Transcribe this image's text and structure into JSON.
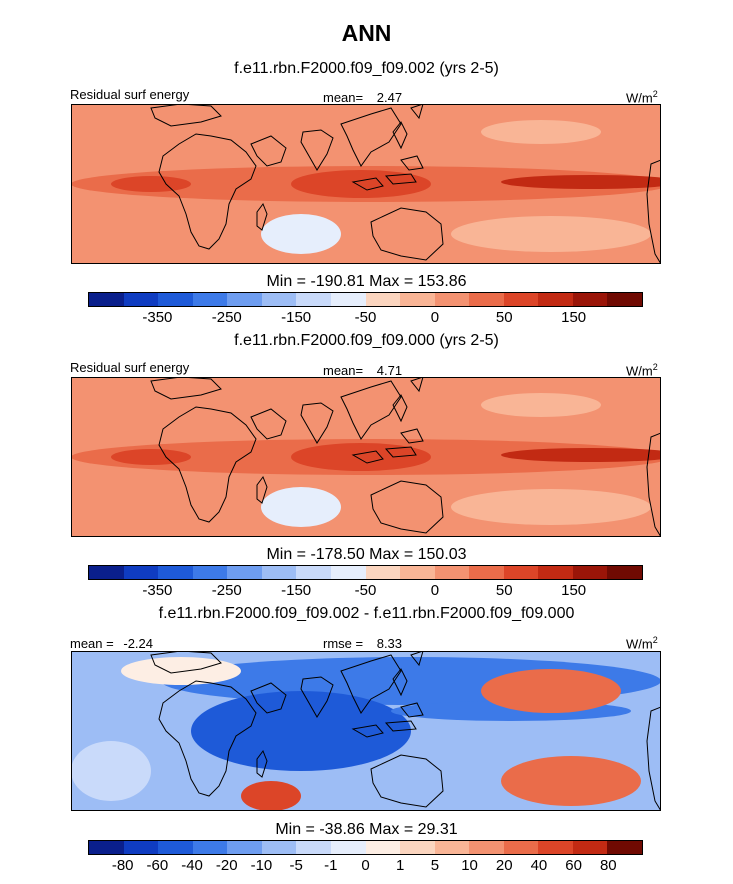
{
  "figure": {
    "title": "ANN",
    "units": "W/m",
    "units_exponent": "2"
  },
  "chart_data": [
    {
      "type": "heatmap",
      "title": "f.e11.rbn.F2000.f09_f09.002 (yrs 2-5)",
      "variable_label": "Residual surf energy",
      "stat_label": "mean=",
      "stat_value": "2.47",
      "min_max_label": "Min = -190.81 Max = 153.86",
      "min": -190.81,
      "max": 153.86,
      "colorbar_ticks": [
        "-350",
        "-250",
        "-150",
        "-50",
        "0",
        "50",
        "150"
      ],
      "colorbar_levels": [
        -400,
        -350,
        -300,
        -250,
        -200,
        -150,
        -100,
        -50,
        -25,
        0,
        25,
        50,
        100,
        150,
        200
      ],
      "colors": [
        "#0a1f8c",
        "#0f3cc1",
        "#1e5ad8",
        "#3d7ae8",
        "#6e9df0",
        "#9dbdf5",
        "#c9dafa",
        "#e6eefc",
        "#fbd5bf",
        "#f9b596",
        "#f39271",
        "#ea6c4a",
        "#dc4528",
        "#c22a13",
        "#9a1508",
        "#700a02"
      ],
      "panel_tint": "warm"
    },
    {
      "type": "heatmap",
      "title": "f.e11.rbn.F2000.f09_f09.000 (yrs 2-5)",
      "variable_label": "Residual surf energy",
      "stat_label": "mean=",
      "stat_value": "4.71",
      "min_max_label": "Min = -178.50 Max = 150.03",
      "min": -178.5,
      "max": 150.03,
      "colorbar_ticks": [
        "-350",
        "-250",
        "-150",
        "-50",
        "0",
        "50",
        "150"
      ],
      "colorbar_levels": [
        -400,
        -350,
        -300,
        -250,
        -200,
        -150,
        -100,
        -50,
        -25,
        0,
        25,
        50,
        100,
        150,
        200
      ],
      "colors": [
        "#0a1f8c",
        "#0f3cc1",
        "#1e5ad8",
        "#3d7ae8",
        "#6e9df0",
        "#9dbdf5",
        "#c9dafa",
        "#e6eefc",
        "#fbd5bf",
        "#f9b596",
        "#f39271",
        "#ea6c4a",
        "#dc4528",
        "#c22a13",
        "#9a1508",
        "#700a02"
      ],
      "panel_tint": "warm"
    },
    {
      "type": "heatmap",
      "title": "f.e11.rbn.F2000.f09_f09.002 - f.e11.rbn.F2000.f09_f09.000",
      "variable_label": "mean =",
      "mean_value": "-2.24",
      "stat_label": "rmse =",
      "stat_value": "8.33",
      "min_max_label": "Min = -38.86 Max = 29.31",
      "min": -38.86,
      "max": 29.31,
      "colorbar_ticks": [
        "-80",
        "-60",
        "-40",
        "-20",
        "-10",
        "-5",
        "-1",
        "0",
        "1",
        "5",
        "10",
        "20",
        "40",
        "60",
        "80"
      ],
      "colors": [
        "#0a1f8c",
        "#0f3cc1",
        "#1e5ad8",
        "#3d7ae8",
        "#6e9df0",
        "#9dbdf5",
        "#c9dafa",
        "#e6eefc",
        "#fdeee4",
        "#fbd5bf",
        "#f9b596",
        "#f39271",
        "#ea6c4a",
        "#dc4528",
        "#c22a13",
        "#700a02"
      ],
      "panel_tint": "diff"
    }
  ]
}
